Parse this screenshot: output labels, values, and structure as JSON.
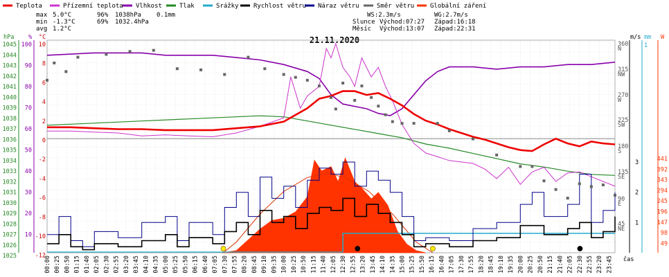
{
  "chart_data": {
    "type": "line",
    "title": "21.11.2020",
    "legend": [
      {
        "name": "Teplota",
        "color": "#ee0000"
      },
      {
        "name": "Přízemní teplota",
        "color": "#cc33cc"
      },
      {
        "name": "Vlhkost",
        "color": "#8800aa"
      },
      {
        "name": "Tlak",
        "color": "#228822"
      },
      {
        "name": "Srážky",
        "color": "#22aacc"
      },
      {
        "name": "Rychlost větru",
        "color": "#000000"
      },
      {
        "name": "Náraz větru",
        "color": "#000088"
      },
      {
        "name": "Směr větru",
        "color": "#666666"
      },
      {
        "name": "Globální záření",
        "color": "#ff3300"
      }
    ],
    "stats": {
      "rows": [
        {
          "label": "max",
          "temp": "5.0°C",
          "hum": "96%",
          "press": "1038hPa",
          "rain": "0.1mm"
        },
        {
          "label": "min",
          "temp": "-1.3°C",
          "hum": "69%",
          "press": "1032.4hPa",
          "rain": ""
        },
        {
          "label": "avg",
          "temp": "1.2°C",
          "hum": "",
          "press": "",
          "rain": ""
        }
      ],
      "wind": {
        "ws": "WS:2.3m/s",
        "wg": "WG:2.7m/s"
      },
      "sun": {
        "label": "Slunce",
        "rise": "Východ:07:27",
        "set": "Západ:16:18"
      },
      "moon": {
        "label": "Měsíc",
        "rise": "Východ:13:07",
        "set": "Západ:22:31"
      }
    },
    "axes": {
      "hpa": {
        "label": "hPa",
        "ticks": [
          "1045",
          "1044",
          "1043",
          "1042",
          "1041",
          "1040",
          "1039",
          "1038",
          "1037",
          "1036",
          "1035",
          "1034",
          "1033",
          "1032",
          "1031",
          "1030",
          "1029",
          "1028",
          "1027",
          "1026",
          "1025"
        ]
      },
      "pct": {
        "label": "%",
        "ticks": [
          "100",
          "90",
          "80",
          "70",
          "60",
          "50",
          "40",
          "30",
          "20",
          "10"
        ]
      },
      "temp": {
        "label": "°C",
        "ticks": [
          "10",
          "8",
          "6",
          "4",
          "2",
          "0",
          "-2",
          "-4",
          "-6",
          "-8",
          "-10",
          "-12"
        ]
      },
      "ms": {
        "label": "m/s",
        "ticks": [
          "3",
          "2",
          "1"
        ]
      },
      "mm": {
        "label": "mm",
        "ticks": [
          "1"
        ]
      },
      "dir": {
        "ticks": [
          "360",
          "N",
          "315",
          "NW",
          "270",
          "W",
          "225",
          "SW",
          "180",
          "S",
          "135",
          "SE",
          "90",
          "E",
          "45",
          "NE"
        ]
      },
      "wm2": {
        "label": "W",
        "ticks": [
          "441",
          "392",
          "343",
          "294",
          "245",
          "196",
          "147",
          "98",
          "49"
        ]
      },
      "x_label": "čas",
      "x_ticks": [
        "00:00",
        "00:25",
        "00:50",
        "01:15",
        "01:40",
        "02:05",
        "02:30",
        "02:55",
        "03:20",
        "03:45",
        "04:10",
        "04:35",
        "05:00",
        "05:25",
        "05:50",
        "06:15",
        "06:40",
        "07:05",
        "07:30",
        "07:55",
        "08:20",
        "08:45",
        "09:10",
        "09:35",
        "10:00",
        "10:25",
        "10:50",
        "11:15",
        "11:40",
        "12:05",
        "12:30",
        "12:55",
        "13:20",
        "13:45",
        "14:10",
        "14:35",
        "15:00",
        "15:25",
        "15:50",
        "16:15",
        "16:40",
        "17:05",
        "17:30",
        "17:55",
        "18:20",
        "18:45",
        "19:10",
        "19:35",
        "20:00",
        "20:25",
        "20:50",
        "21:15",
        "21:40",
        "22:05",
        "22:30",
        "22:55",
        "23:20",
        "23:45"
      ]
    },
    "x_range_hours": [
      0,
      24
    ],
    "series": {
      "temperature_c": [
        [
          0,
          1.2
        ],
        [
          1,
          1.2
        ],
        [
          2,
          1.1
        ],
        [
          3,
          1.0
        ],
        [
          4,
          1.0
        ],
        [
          5,
          0.9
        ],
        [
          6,
          0.9
        ],
        [
          7,
          0.9
        ],
        [
          8,
          1.1
        ],
        [
          9,
          1.3
        ],
        [
          10,
          1.8
        ],
        [
          11,
          3.2
        ],
        [
          11.5,
          4.2
        ],
        [
          12,
          4.5
        ],
        [
          12.5,
          5.0
        ],
        [
          13,
          5.0
        ],
        [
          13.5,
          4.6
        ],
        [
          14,
          4.8
        ],
        [
          14.5,
          4.2
        ],
        [
          15,
          3.5
        ],
        [
          15.5,
          2.6
        ],
        [
          16,
          1.9
        ],
        [
          16.5,
          1.5
        ],
        [
          17,
          1.0
        ],
        [
          17.5,
          0.6
        ],
        [
          18,
          0.2
        ],
        [
          18.5,
          -0.1
        ],
        [
          19,
          -0.5
        ],
        [
          19.5,
          -0.9
        ],
        [
          20,
          -1.2
        ],
        [
          20.5,
          -1.3
        ],
        [
          21,
          -0.6
        ],
        [
          21.5,
          0.0
        ],
        [
          22,
          -0.5
        ],
        [
          22.5,
          -0.8
        ],
        [
          23,
          -0.3
        ],
        [
          23.5,
          -0.5
        ],
        [
          24,
          -0.6
        ]
      ],
      "ground_temp_c": [
        [
          0,
          0.8
        ],
        [
          1,
          0.8
        ],
        [
          2,
          0.7
        ],
        [
          3,
          0.6
        ],
        [
          4,
          0.3
        ],
        [
          5,
          0.4
        ],
        [
          6,
          0.3
        ],
        [
          7,
          0.2
        ],
        [
          8,
          0.6
        ],
        [
          9,
          1.3
        ],
        [
          10,
          2.2
        ],
        [
          10.3,
          6.5
        ],
        [
          10.7,
          3.2
        ],
        [
          11,
          4.5
        ],
        [
          11.5,
          5.5
        ],
        [
          11.8,
          9.5
        ],
        [
          12,
          8.5
        ],
        [
          12.2,
          10.0
        ],
        [
          12.5,
          7.5
        ],
        [
          12.8,
          6.5
        ],
        [
          13,
          5.5
        ],
        [
          13.3,
          8.5
        ],
        [
          13.7,
          6.5
        ],
        [
          14,
          7.5
        ],
        [
          14.3,
          5.5
        ],
        [
          14.6,
          4.0
        ],
        [
          15,
          1.5
        ],
        [
          15.5,
          -0.5
        ],
        [
          16,
          -1.5
        ],
        [
          17,
          -2.3
        ],
        [
          18,
          -2.6
        ],
        [
          18.5,
          -3.2
        ],
        [
          19,
          -4.2
        ],
        [
          19.5,
          -3.0
        ],
        [
          20,
          -4.8
        ],
        [
          20.5,
          -3.5
        ],
        [
          21,
          -3.0
        ],
        [
          21.5,
          -4.5
        ],
        [
          22,
          -3.6
        ],
        [
          22.5,
          -3.5
        ],
        [
          23,
          -4.0
        ],
        [
          24,
          -5.0
        ]
      ],
      "humidity_pct": [
        [
          0,
          95
        ],
        [
          2,
          96
        ],
        [
          4,
          96
        ],
        [
          5,
          95
        ],
        [
          6,
          95
        ],
        [
          7,
          95
        ],
        [
          8,
          94
        ],
        [
          9,
          93
        ],
        [
          10,
          91
        ],
        [
          11,
          88
        ],
        [
          11.5,
          85
        ],
        [
          12,
          78
        ],
        [
          12.5,
          74
        ],
        [
          13,
          73
        ],
        [
          13.5,
          72
        ],
        [
          14,
          70
        ],
        [
          14.5,
          69
        ],
        [
          15,
          72
        ],
        [
          15.5,
          78
        ],
        [
          16,
          84
        ],
        [
          16.5,
          88
        ],
        [
          17,
          90
        ],
        [
          18,
          90
        ],
        [
          19,
          89
        ],
        [
          20,
          90
        ],
        [
          21,
          90
        ],
        [
          22,
          91
        ],
        [
          23,
          91
        ],
        [
          24,
          92
        ]
      ],
      "pressure_hpa": [
        [
          0,
          1037.2
        ],
        [
          2,
          1037.4
        ],
        [
          4,
          1037.6
        ],
        [
          6,
          1037.8
        ],
        [
          7,
          1037.9
        ],
        [
          8,
          1038.0
        ],
        [
          9,
          1038.1
        ],
        [
          10,
          1038.0
        ],
        [
          11,
          1037.6
        ],
        [
          12,
          1037.2
        ],
        [
          13,
          1036.8
        ],
        [
          14,
          1036.4
        ],
        [
          15,
          1036.0
        ],
        [
          16,
          1035.4
        ],
        [
          17,
          1035.0
        ],
        [
          18,
          1034.5
        ],
        [
          19,
          1034.0
        ],
        [
          20,
          1033.5
        ],
        [
          21,
          1033.2
        ],
        [
          22,
          1032.8
        ],
        [
          23,
          1032.5
        ],
        [
          24,
          1032.4
        ]
      ],
      "radiation_wm2": [
        [
          7.4,
          0
        ],
        [
          8,
          10
        ],
        [
          8.5,
          60
        ],
        [
          9,
          110
        ],
        [
          9.5,
          150
        ],
        [
          10,
          160
        ],
        [
          10.5,
          190
        ],
        [
          11,
          260
        ],
        [
          11.3,
          430
        ],
        [
          11.6,
          380
        ],
        [
          12,
          400
        ],
        [
          12.3,
          330
        ],
        [
          12.6,
          440
        ],
        [
          13,
          330
        ],
        [
          13.3,
          300
        ],
        [
          13.7,
          250
        ],
        [
          14,
          280
        ],
        [
          14.4,
          220
        ],
        [
          14.8,
          100
        ],
        [
          15.2,
          40
        ],
        [
          15.6,
          10
        ],
        [
          16,
          0
        ]
      ],
      "clear_sky_wm2": [
        [
          7.45,
          0
        ],
        [
          8,
          50
        ],
        [
          9,
          180
        ],
        [
          10,
          285
        ],
        [
          11,
          350
        ],
        [
          11.8,
          370
        ],
        [
          12.6,
          350
        ],
        [
          13.6,
          285
        ],
        [
          14.6,
          180
        ],
        [
          15.6,
          50
        ],
        [
          16.3,
          0
        ]
      ],
      "wind_speed_ms": [
        [
          0,
          0.3
        ],
        [
          0.5,
          0.6
        ],
        [
          1,
          0.2
        ],
        [
          1.5,
          0.1
        ],
        [
          2,
          0.3
        ],
        [
          3,
          0.2
        ],
        [
          4,
          0.4
        ],
        [
          5,
          0.6
        ],
        [
          5.5,
          0.2
        ],
        [
          6,
          0.5
        ],
        [
          7,
          0.3
        ],
        [
          7.5,
          0.7
        ],
        [
          8,
          1.0
        ],
        [
          8.5,
          0.6
        ],
        [
          9,
          1.4
        ],
        [
          9.5,
          1.0
        ],
        [
          10,
          1.2
        ],
        [
          10.5,
          0.8
        ],
        [
          11,
          1.3
        ],
        [
          11.5,
          1.5
        ],
        [
          12,
          1.4
        ],
        [
          12.5,
          1.8
        ],
        [
          13,
          1.2
        ],
        [
          13.5,
          1.6
        ],
        [
          14,
          1.3
        ],
        [
          14.5,
          1.0
        ],
        [
          15,
          0.6
        ],
        [
          15.5,
          0.2
        ],
        [
          16,
          0.3
        ],
        [
          17,
          0.2
        ],
        [
          18,
          0.4
        ],
        [
          19,
          0.5
        ],
        [
          20,
          0.9
        ],
        [
          21,
          0.6
        ],
        [
          22,
          0.8
        ],
        [
          22.5,
          1.0
        ],
        [
          23,
          0.5
        ],
        [
          23.5,
          0.7
        ],
        [
          24,
          1.2
        ]
      ],
      "wind_gust_ms": [
        [
          0,
          0.6
        ],
        [
          0.5,
          1.2
        ],
        [
          1,
          0.4
        ],
        [
          1.5,
          0.2
        ],
        [
          2,
          0.7
        ],
        [
          3,
          0.5
        ],
        [
          4,
          1.0
        ],
        [
          5,
          1.2
        ],
        [
          5.5,
          0.4
        ],
        [
          6,
          1.0
        ],
        [
          7,
          0.6
        ],
        [
          7.5,
          1.5
        ],
        [
          8,
          2.0
        ],
        [
          8.5,
          1.2
        ],
        [
          9,
          2.5
        ],
        [
          9.5,
          1.8
        ],
        [
          10,
          2.2
        ],
        [
          10.5,
          1.5
        ],
        [
          11,
          2.4
        ],
        [
          11.5,
          2.8
        ],
        [
          12,
          2.6
        ],
        [
          12.5,
          3.0
        ],
        [
          13,
          2.2
        ],
        [
          13.5,
          2.7
        ],
        [
          14,
          2.4
        ],
        [
          14.5,
          2.0
        ],
        [
          15,
          1.2
        ],
        [
          15.5,
          0.4
        ],
        [
          16,
          0.5
        ],
        [
          17,
          0.4
        ],
        [
          18,
          0.8
        ],
        [
          19,
          1.0
        ],
        [
          20,
          1.6
        ],
        [
          20.5,
          2.0
        ],
        [
          21,
          1.2
        ],
        [
          22,
          1.6
        ],
        [
          22.5,
          2.6
        ],
        [
          23,
          1.0
        ],
        [
          23.5,
          1.4
        ],
        [
          24,
          2.0
        ]
      ],
      "wind_dir_deg": [
        [
          0,
          300
        ],
        [
          0.3,
          330
        ],
        [
          0.8,
          315
        ],
        [
          1.3,
          340
        ],
        [
          2.5,
          345
        ],
        [
          3.5,
          350
        ],
        [
          4.5,
          352
        ],
        [
          5.5,
          320
        ],
        [
          6.5,
          318
        ],
        [
          7.5,
          310
        ],
        [
          8.5,
          340
        ],
        [
          9.2,
          320
        ],
        [
          10,
          310
        ],
        [
          10.5,
          305
        ],
        [
          11,
          300
        ],
        [
          11.5,
          290
        ],
        [
          12,
          270
        ],
        [
          12.2,
          250
        ],
        [
          12.5,
          295
        ],
        [
          13,
          265
        ],
        [
          13.3,
          290
        ],
        [
          13.7,
          270
        ],
        [
          14,
          255
        ],
        [
          14.3,
          240
        ],
        [
          14.6,
          228
        ],
        [
          15,
          225
        ],
        [
          15.5,
          225
        ],
        [
          16.5,
          225
        ],
        [
          17,
          212
        ],
        [
          18,
          198
        ],
        [
          19,
          170
        ],
        [
          20,
          150
        ],
        [
          20.5,
          150
        ],
        [
          21,
          125
        ],
        [
          21.5,
          110
        ],
        [
          22,
          95
        ],
        [
          22.5,
          120
        ],
        [
          23,
          115
        ],
        [
          23.5,
          118
        ],
        [
          24,
          100
        ]
      ]
    },
    "markers": {
      "sunrise": 7.45,
      "sunset": 16.3,
      "moonrise": 13.12,
      "moonset": 22.52,
      "rain_time": 12.5,
      "rain_mm": 0.1
    }
  }
}
